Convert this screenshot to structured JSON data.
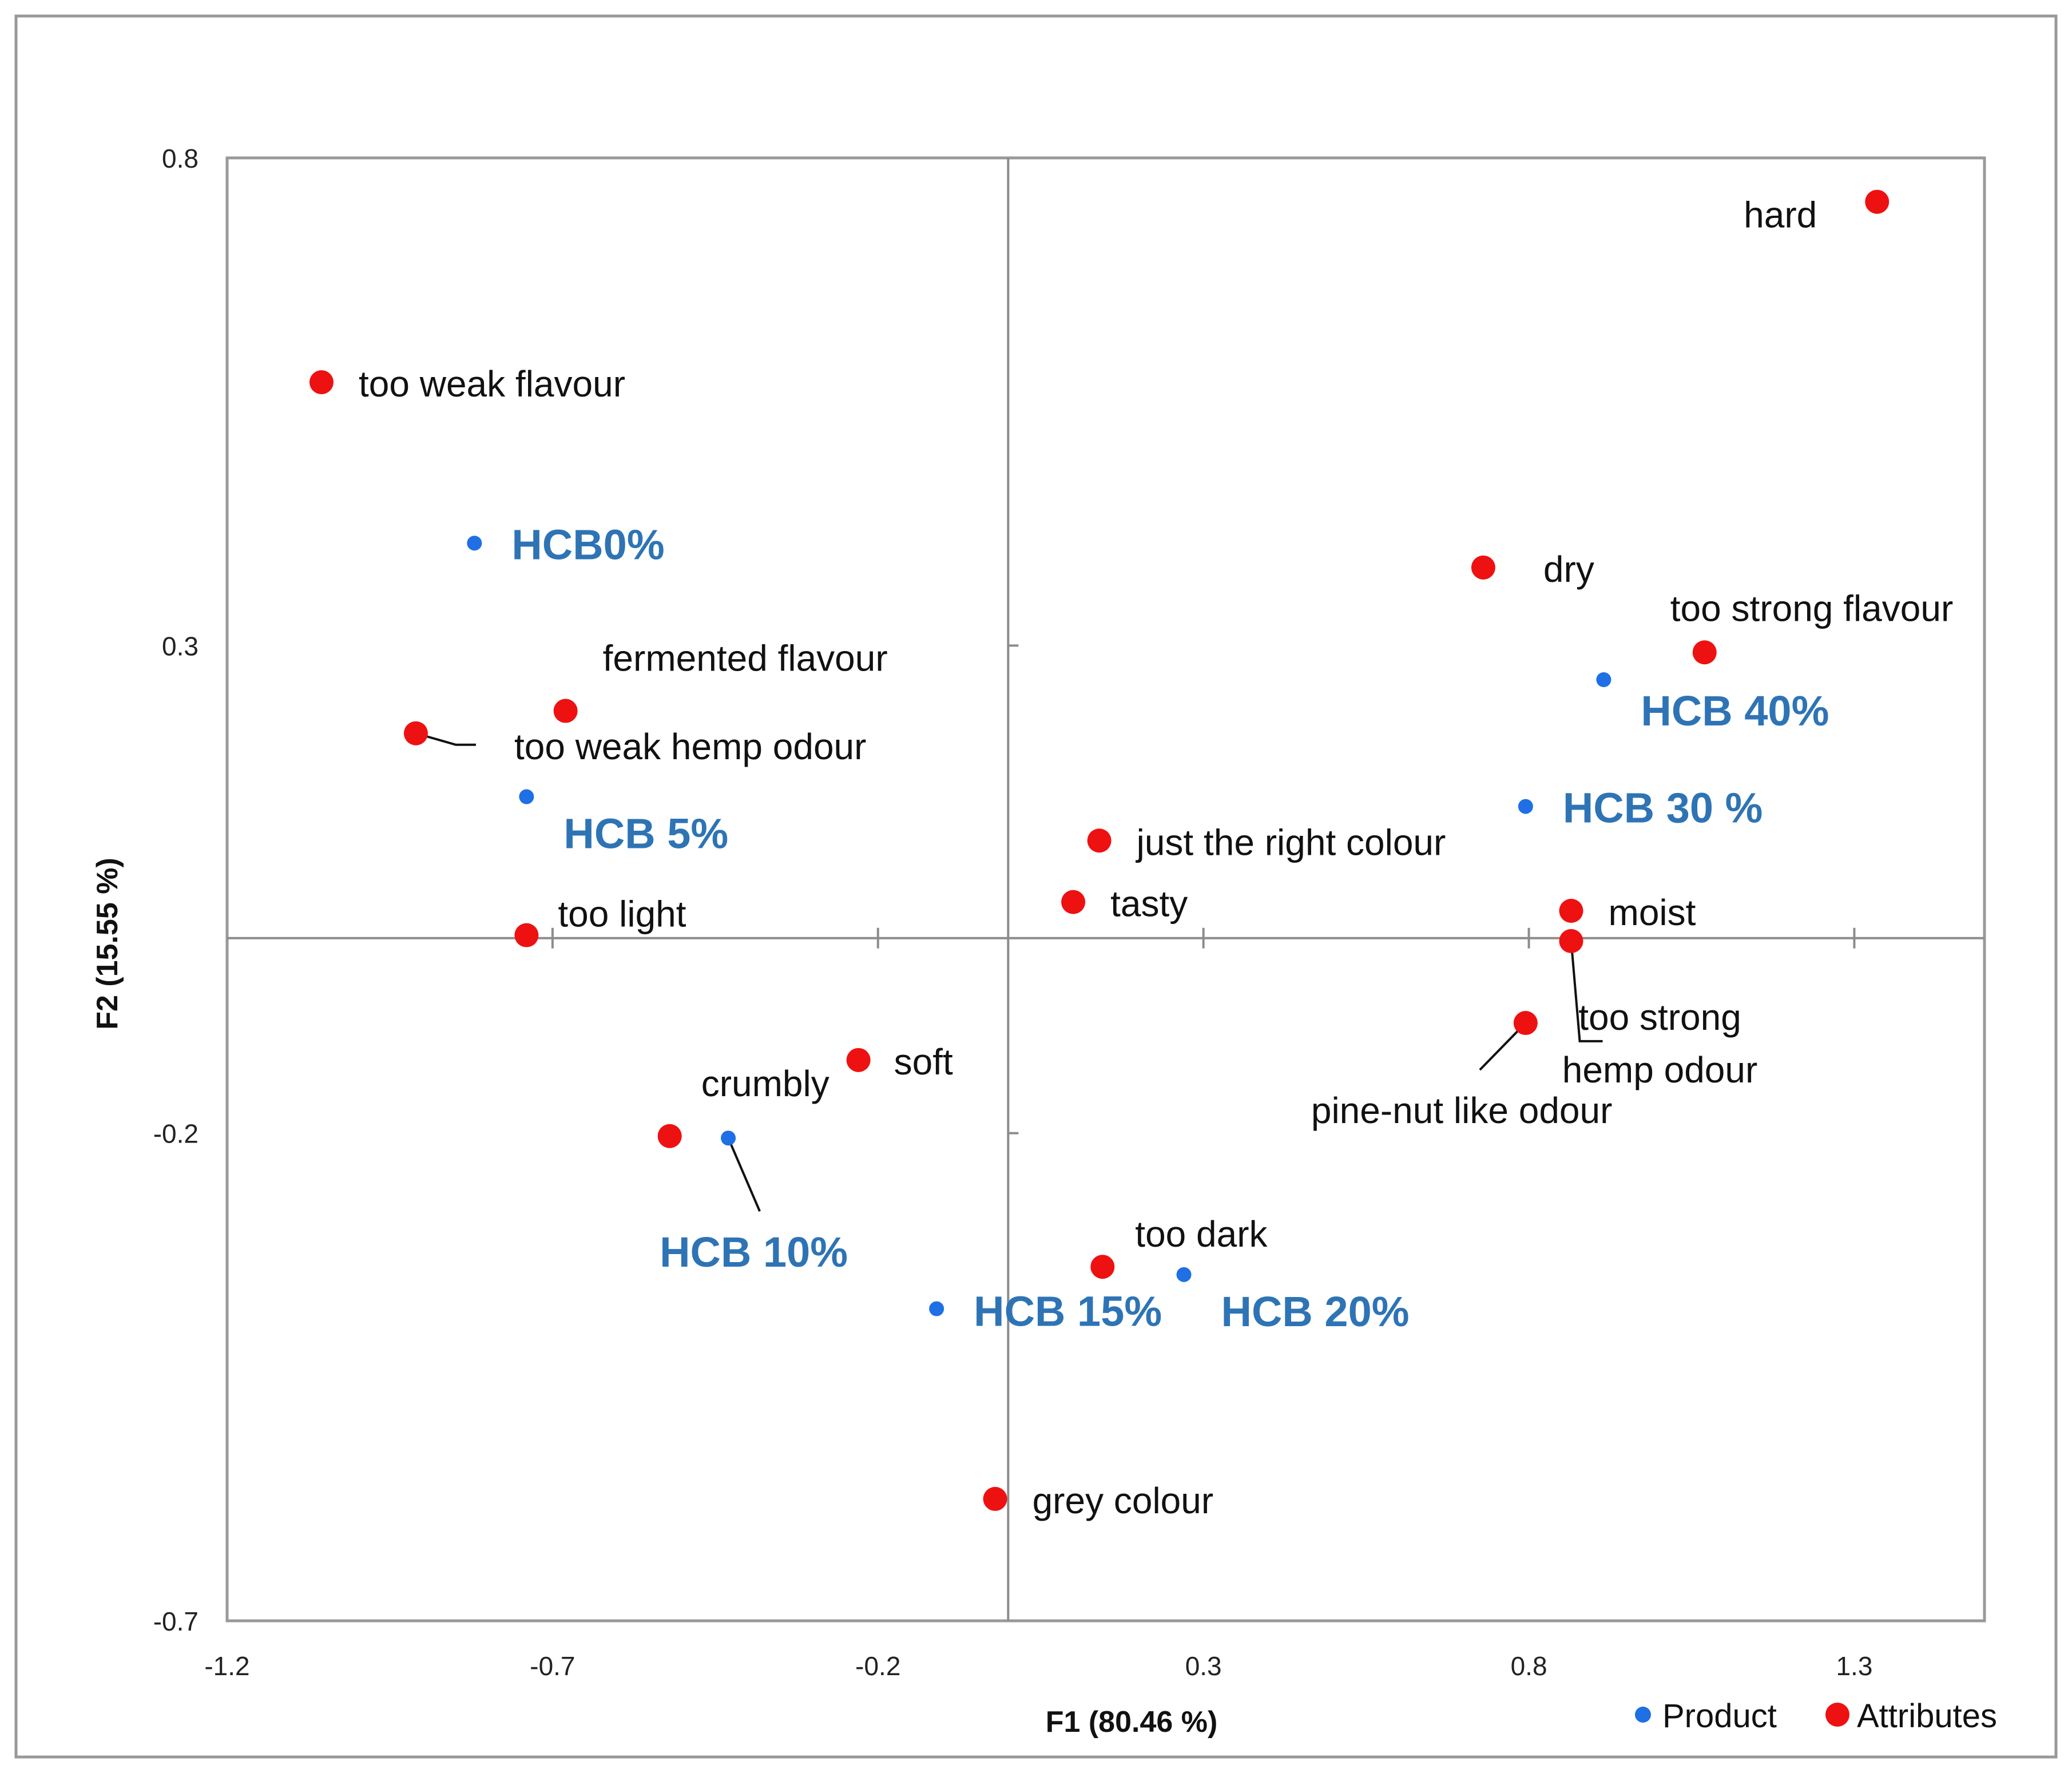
{
  "colors": {
    "product": "#1f6fe5",
    "attribute": "#ee1111",
    "product_label": "#2e74b5",
    "frame": "#999999",
    "zero_line": "#8c8c8c",
    "leader": "#111111"
  },
  "chart_data": {
    "type": "scatter",
    "title": "",
    "xlabel": "F1 (80.46 %)",
    "ylabel": "F2 (15.55 %)",
    "xlim": [
      -1.2,
      1.5
    ],
    "ylim": [
      -0.7,
      0.8
    ],
    "x_ticks": [
      -1.2,
      -0.7,
      -0.2,
      0.3,
      0.8,
      1.3
    ],
    "x_tick_labels": [
      "-1.2",
      "-0.7",
      "-0.2",
      "0.3",
      "0.8",
      "1.3"
    ],
    "y_ticks": [
      0.8,
      0.3,
      -0.2,
      -0.7
    ],
    "y_tick_labels": [
      "0.8",
      "0.3",
      "-0.2",
      "-0.7"
    ],
    "grid": false,
    "legend": {
      "placement": "bottom-right",
      "items": [
        {
          "name": "Product",
          "series": "product"
        },
        {
          "name": "Attributes",
          "series": "attribute"
        }
      ]
    },
    "series": [
      {
        "name": "Product",
        "key": "product",
        "points": [
          {
            "label": "HCB0%",
            "x": -0.82,
            "y": 0.405
          },
          {
            "label": "HCB 5%",
            "x": -0.74,
            "y": 0.145
          },
          {
            "label": "HCB 10%",
            "x": -0.43,
            "y": -0.205
          },
          {
            "label": "HCB 15%",
            "x": -0.11,
            "y": -0.38
          },
          {
            "label": "HCB 20%",
            "x": 0.27,
            "y": -0.345
          },
          {
            "label": "HCB 30 %",
            "x": 0.795,
            "y": 0.135
          },
          {
            "label": "HCB 40%",
            "x": 0.915,
            "y": 0.265
          }
        ]
      },
      {
        "name": "Attributes",
        "key": "attribute",
        "points": [
          {
            "label": "hard",
            "x": 1.335,
            "y": 0.755
          },
          {
            "label": "too weak flavour",
            "x": -1.055,
            "y": 0.57
          },
          {
            "label": "dry",
            "x": 0.73,
            "y": 0.38
          },
          {
            "label": "too strong flavour",
            "x": 1.07,
            "y": 0.293
          },
          {
            "label": "fermented flavour",
            "x": -0.68,
            "y": 0.233
          },
          {
            "label": "too weak hemp odour",
            "x": -0.91,
            "y": 0.21
          },
          {
            "label": "just the right colour",
            "x": 0.14,
            "y": 0.1
          },
          {
            "label": "tasty",
            "x": 0.1,
            "y": 0.037
          },
          {
            "label": "moist",
            "x": 0.865,
            "y": 0.028
          },
          {
            "label": "too strong hemp odour",
            "x": 0.865,
            "y": -0.003
          },
          {
            "label": "too light",
            "x": -0.74,
            "y": 0.003
          },
          {
            "label": "pine-nut like odour",
            "x": 0.795,
            "y": -0.087
          },
          {
            "label": "soft",
            "x": -0.23,
            "y": -0.125
          },
          {
            "label": "crumbly",
            "x": -0.52,
            "y": -0.203
          },
          {
            "label": "too dark",
            "x": 0.145,
            "y": -0.337
          },
          {
            "label": "grey colour",
            "x": -0.02,
            "y": -0.575
          }
        ]
      }
    ]
  }
}
